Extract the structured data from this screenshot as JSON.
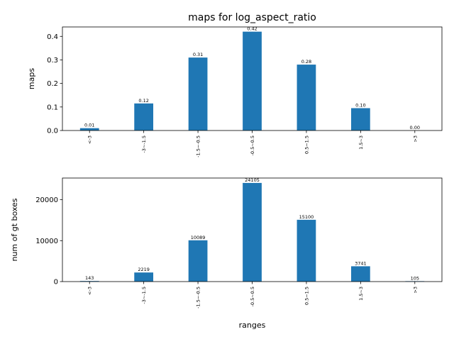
{
  "chart_data": [
    {
      "type": "bar",
      "title": "maps for log_aspect_ratio",
      "xlabel": "",
      "ylabel": "maps",
      "categories": [
        "<-3",
        "-3~-1.5",
        "-1.5~-0.5",
        "-0.5~0.5",
        "0.5~1.5",
        "1.5~3",
        ">3"
      ],
      "values": [
        0.01,
        0.115,
        0.31,
        0.42,
        0.28,
        0.095,
        0.0
      ],
      "value_labels": [
        "0.01",
        "0.12",
        "0.31",
        "0.42",
        "0.28",
        "0.10",
        "0.00"
      ],
      "ylim": [
        0,
        0.44
      ],
      "yticks": [
        0.0,
        0.1,
        0.2,
        0.3,
        0.4
      ],
      "ytick_labels": [
        "0.0",
        "0.1",
        "0.2",
        "0.3",
        "0.4"
      ],
      "bar_color": "#1f77b4",
      "grid": false,
      "legend": "none"
    },
    {
      "type": "bar",
      "title": "",
      "xlabel": "ranges",
      "ylabel": "num of gt boxes",
      "categories": [
        "<-3",
        "-3~-1.5",
        "-1.5~-0.5",
        "-0.5~0.5",
        "0.5~1.5",
        "1.5~3",
        ">3"
      ],
      "values": [
        143,
        2219,
        10089,
        24105,
        15100,
        3741,
        105
      ],
      "value_labels": [
        "143",
        "2219",
        "10089",
        "24105",
        "15100",
        "3741",
        "105"
      ],
      "ylim": [
        0,
        25300
      ],
      "yticks": [
        0,
        10000,
        20000
      ],
      "ytick_labels": [
        "0",
        "10000",
        "20000"
      ],
      "bar_color": "#1f77b4",
      "grid": false,
      "legend": "none"
    }
  ]
}
